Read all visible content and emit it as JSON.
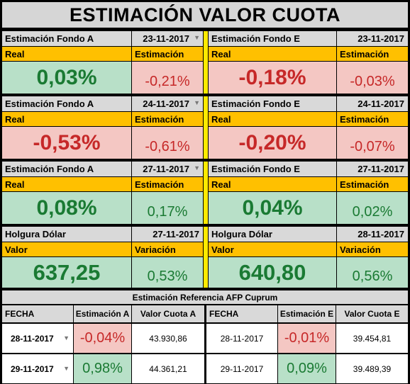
{
  "title": "ESTIMACIÓN VALOR CUOTA",
  "rows": [
    {
      "left": {
        "label": "Estimación Fondo A",
        "date": "23-11-2017",
        "real_label": "Real",
        "est_label": "Estimación",
        "real": "0,03%",
        "est": "-0,21%",
        "real_sign": "pos",
        "est_sign": "neg"
      },
      "right": {
        "label": "Estimación Fondo E",
        "date": "23-11-2017",
        "real_label": "Real",
        "est_label": "Estimación",
        "real": "-0,18%",
        "est": "-0,03%",
        "real_sign": "neg",
        "est_sign": "neg"
      }
    },
    {
      "left": {
        "label": "Estimación Fondo A",
        "date": "24-11-2017",
        "real_label": "Real",
        "est_label": "Estimación",
        "real": "-0,53%",
        "est": "-0,61%",
        "real_sign": "neg",
        "est_sign": "neg"
      },
      "right": {
        "label": "Estimación Fondo E",
        "date": "24-11-2017",
        "real_label": "Real",
        "est_label": "Estimación",
        "real": "-0,20%",
        "est": "-0,07%",
        "real_sign": "neg",
        "est_sign": "neg"
      }
    },
    {
      "left": {
        "label": "Estimación Fondo A",
        "date": "27-11-2017",
        "real_label": "Real",
        "est_label": "Estimación",
        "real": "0,08%",
        "est": "0,17%",
        "real_sign": "pos",
        "est_sign": "pos"
      },
      "right": {
        "label": "Estimación Fondo E",
        "date": "27-11-2017",
        "real_label": "Real",
        "est_label": "Estimación",
        "real": "0,04%",
        "est": "0,02%",
        "real_sign": "pos",
        "est_sign": "pos"
      }
    }
  ],
  "dolar": {
    "left": {
      "label": "Holgura Dólar",
      "date": "27-11-2017",
      "valor_label": "Valor",
      "var_label": "Variación",
      "valor": "637,25",
      "variacion": "0,53%"
    },
    "right": {
      "label": "Holgura Dólar",
      "date": "28-11-2017",
      "valor_label": "Valor",
      "var_label": "Variación",
      "valor": "640,80",
      "variacion": "0,56%"
    }
  },
  "referencia": {
    "title": "Estimación Referencia AFP Cuprum",
    "headers": [
      "FECHA",
      "Estimación A",
      "Valor Cuota A",
      "FECHA",
      "Estimación E",
      "Valor Cuota E"
    ],
    "rows": [
      {
        "fecha_a": "28-11-2017",
        "est_a": "-0,04%",
        "cuota_a": "43.930,86",
        "fecha_e": "28-11-2017",
        "est_e": "-0,01%",
        "cuota_e": "39.454,81",
        "sign_a": "neg",
        "sign_e": "neg"
      },
      {
        "fecha_a": "29-11-2017",
        "est_a": "0,98%",
        "cuota_a": "44.361,21",
        "fecha_e": "29-11-2017",
        "est_e": "0,09%",
        "cuota_e": "39.489,39",
        "sign_a": "pos",
        "sign_e": "pos"
      }
    ]
  },
  "colors": {
    "header_gray": "#d9d9d9",
    "label_orange": "#ffc000",
    "positive_bg": "#b8e0c8",
    "negative_bg": "#f4c7c3",
    "positive_text": "#1a7a33",
    "negative_text": "#c62828",
    "divider_yellow": "#ffea00"
  }
}
